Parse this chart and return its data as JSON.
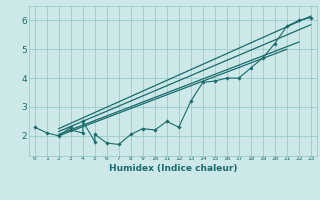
{
  "bg_color": "#cce8e8",
  "grid_color": "#99cccc",
  "line_color": "#1a6b6b",
  "xlabel": "Humidex (Indice chaleur)",
  "xlim": [
    -0.5,
    23.5
  ],
  "ylim": [
    1.3,
    6.5
  ],
  "yticks": [
    2,
    3,
    4,
    5,
    6
  ],
  "xtick_labels": [
    "0",
    "1",
    "2",
    "3",
    "4",
    "5",
    "6",
    "7",
    "8",
    "9",
    "10",
    "11",
    "12",
    "13",
    "14",
    "15",
    "16",
    "17",
    "18",
    "19",
    "20",
    "21",
    "22",
    "23"
  ],
  "data_x": [
    0,
    1,
    2,
    3,
    3,
    4,
    4,
    5,
    5,
    6,
    7,
    8,
    9,
    10,
    11,
    12,
    13,
    14,
    15,
    16,
    17,
    18,
    19,
    20,
    21,
    22,
    23
  ],
  "data_y": [
    2.3,
    2.1,
    2.0,
    2.3,
    2.2,
    2.1,
    2.5,
    1.8,
    2.05,
    1.75,
    1.7,
    2.05,
    2.25,
    2.2,
    2.5,
    2.3,
    3.2,
    3.85,
    3.9,
    4.0,
    4.0,
    4.35,
    4.7,
    5.2,
    5.8,
    6.0,
    6.1
  ],
  "line1_x": [
    2,
    23
  ],
  "line1_y": [
    2.25,
    6.15
  ],
  "line2_x": [
    2,
    23
  ],
  "line2_y": [
    2.15,
    5.85
  ],
  "line3_x": [
    2,
    22
  ],
  "line3_y": [
    2.05,
    5.25
  ],
  "line4_x": [
    2,
    21
  ],
  "line4_y": [
    2.0,
    5.0
  ]
}
